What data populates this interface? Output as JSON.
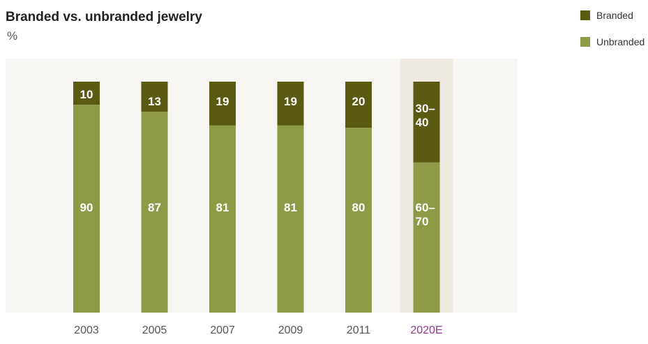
{
  "chart_data": {
    "type": "bar",
    "stacked": true,
    "title": "Branded vs. unbranded jewelry",
    "unit": "%",
    "categories": [
      "2003",
      "2005",
      "2007",
      "2009",
      "2011",
      "2020E"
    ],
    "series": [
      {
        "name": "Branded",
        "color": "#5a5a13",
        "values": [
          10,
          13,
          19,
          19,
          20,
          35
        ],
        "labels": [
          "10",
          "13",
          "19",
          "19",
          "20",
          "30–40"
        ]
      },
      {
        "name": "Unbranded",
        "color": "#8f9a47",
        "values": [
          90,
          87,
          81,
          81,
          80,
          65
        ],
        "labels": [
          "90",
          "87",
          "81",
          "81",
          "80",
          "60–70"
        ]
      }
    ],
    "highlight_category": "2020E",
    "highlight_color": "#efebe2",
    "highlight_label_color": "#8e3b8e",
    "ylim": [
      0,
      100
    ],
    "legend_position": "top-right",
    "plot_background": "#f7f6f3"
  }
}
